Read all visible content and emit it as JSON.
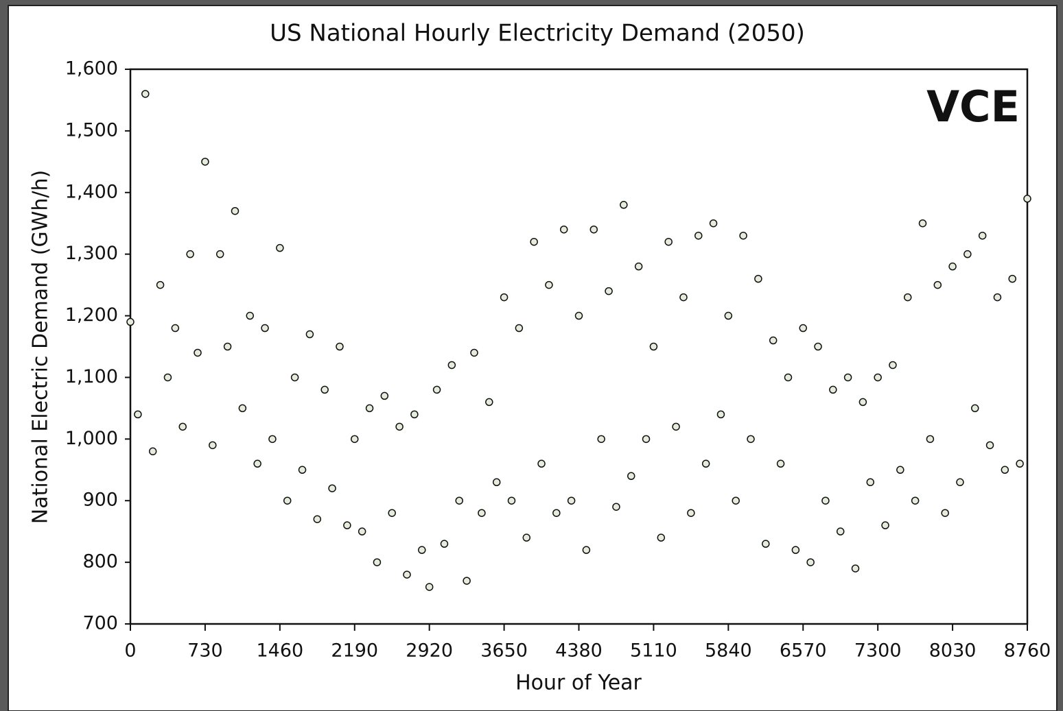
{
  "chart_data": {
    "type": "scatter",
    "title": "US National Hourly Electricity Demand (2050)",
    "logo": "VCE",
    "x_label": "Hour of Year",
    "y_label": "National Electric Demand (GWh/h)",
    "color": "#e6ecdc",
    "edge_color": "#111111",
    "xlim": [
      0,
      8760
    ],
    "ylim": [
      700,
      1600
    ],
    "xticks": [
      0,
      730,
      1460,
      2190,
      2920,
      3650,
      4380,
      5110,
      5840,
      6570,
      7300,
      8030,
      8760
    ],
    "yticks": [
      {
        "value": 700,
        "label": "700"
      },
      {
        "value": 800,
        "label": "800"
      },
      {
        "value": 900,
        "label": "900"
      },
      {
        "value": 1000,
        "label": "1,000"
      },
      {
        "value": 1100,
        "label": "1,100"
      },
      {
        "value": 1200,
        "label": "1,200"
      },
      {
        "value": 1300,
        "label": "1,300"
      },
      {
        "value": 1400,
        "label": "1,400"
      },
      {
        "value": 1500,
        "label": "1,500"
      },
      {
        "value": 1600,
        "label": "1,600"
      }
    ],
    "x": [
      0,
      73,
      146,
      219,
      292,
      365,
      438,
      511,
      584,
      657,
      730,
      803,
      876,
      949,
      1022,
      1095,
      1168,
      1241,
      1314,
      1387,
      1460,
      1533,
      1606,
      1679,
      1752,
      1825,
      1898,
      1971,
      2044,
      2117,
      2190,
      2263,
      2336,
      2409,
      2482,
      2555,
      2628,
      2701,
      2774,
      2847,
      2920,
      2993,
      3066,
      3139,
      3212,
      3285,
      3358,
      3431,
      3504,
      3577,
      3650,
      3723,
      3796,
      3869,
      3942,
      4015,
      4088,
      4161,
      4234,
      4307,
      4380,
      4453,
      4526,
      4599,
      4672,
      4745,
      4818,
      4891,
      4964,
      5037,
      5110,
      5183,
      5256,
      5329,
      5402,
      5475,
      5548,
      5621,
      5694,
      5767,
      5840,
      5913,
      5986,
      6059,
      6132,
      6205,
      6278,
      6351,
      6424,
      6497,
      6570,
      6643,
      6716,
      6789,
      6862,
      6935,
      7008,
      7081,
      7154,
      7227,
      7300,
      7373,
      7446,
      7519,
      7592,
      7665,
      7738,
      7811,
      7884,
      7957,
      8030,
      8103,
      8176,
      8249,
      8322,
      8395,
      8468,
      8541,
      8614,
      8687,
      8760
    ],
    "values": [
      1190,
      1040,
      1560,
      980,
      1250,
      1100,
      1180,
      1020,
      1300,
      1140,
      1450,
      990,
      1300,
      1150,
      1370,
      1050,
      1200,
      960,
      1180,
      1000,
      1310,
      900,
      1100,
      950,
      1170,
      870,
      1080,
      920,
      1150,
      860,
      1000,
      850,
      1050,
      800,
      1070,
      880,
      1020,
      780,
      1040,
      820,
      760,
      1080,
      830,
      1120,
      900,
      770,
      1140,
      880,
      1060,
      930,
      1230,
      900,
      1180,
      840,
      1320,
      960,
      1250,
      880,
      1340,
      900,
      1200,
      820,
      1340,
      1000,
      1240,
      890,
      1380,
      940,
      1280,
      1000,
      1150,
      840,
      1320,
      1020,
      1230,
      880,
      1330,
      960,
      1350,
      1040,
      1200,
      900,
      1330,
      1000,
      1260,
      830,
      1160,
      960,
      1100,
      820,
      1180,
      800,
      1150,
      900,
      1080,
      850,
      1100,
      790,
      1060,
      930,
      1100,
      860,
      1120,
      950,
      1230,
      900,
      1350,
      1000,
      1250,
      880,
      1280,
      930,
      1300,
      1050,
      1330,
      990,
      1230,
      950,
      1260,
      960,
      1390
    ]
  }
}
